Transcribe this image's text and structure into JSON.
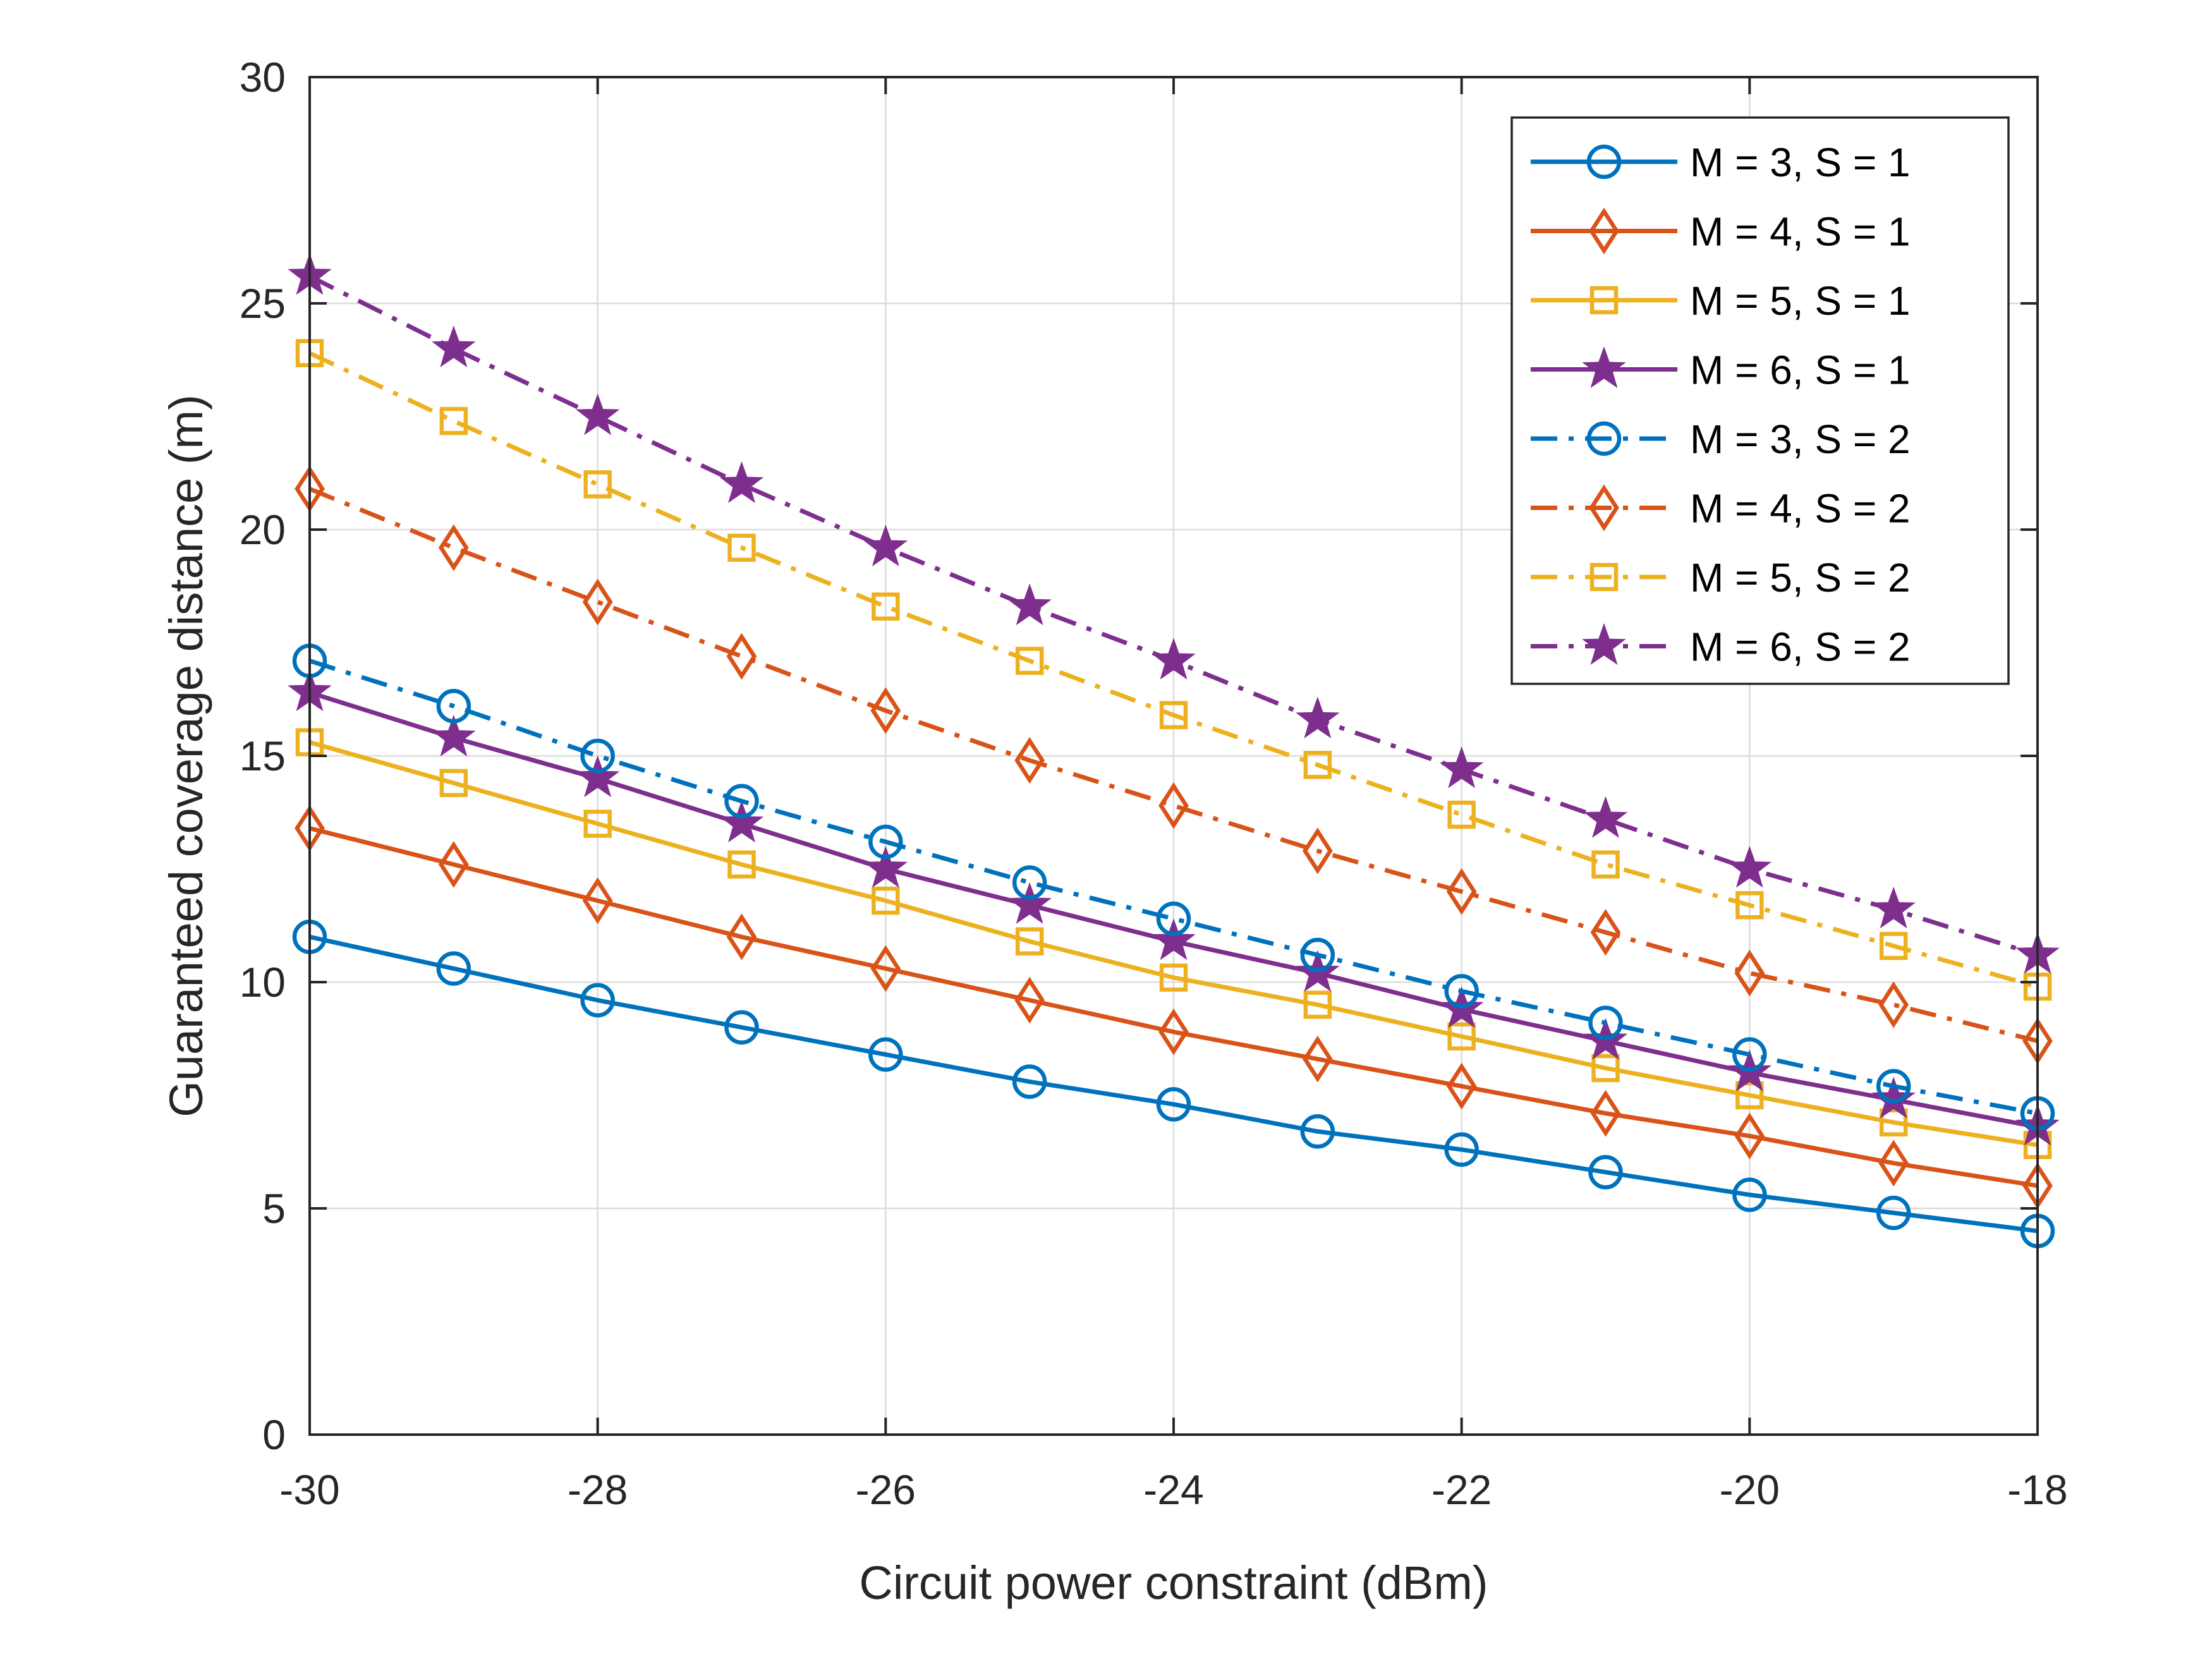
{
  "chart_data": {
    "type": "line",
    "xlabel": "Circuit power constraint (dBm)",
    "ylabel": "Guaranteed coverage distance (m)",
    "xlim": [
      -30,
      -18
    ],
    "ylim": [
      0,
      30
    ],
    "xticks": [
      -30,
      -28,
      -26,
      -24,
      -22,
      -20,
      -18
    ],
    "yticks": [
      0,
      5,
      10,
      15,
      20,
      25,
      30
    ],
    "grid": true,
    "legend_position": "top-right",
    "x": [
      -30,
      -29,
      -28,
      -27,
      -26,
      -25,
      -24,
      -23,
      -22,
      -21,
      -20,
      -19,
      -18
    ],
    "series": [
      {
        "name": "M = 3, S = 1",
        "color": "#0072BD",
        "marker": "circle",
        "linestyle": "solid",
        "values": [
          11.0,
          10.3,
          9.6,
          9.0,
          8.4,
          7.8,
          7.3,
          6.7,
          6.3,
          5.8,
          5.3,
          4.9,
          4.5
        ]
      },
      {
        "name": "M = 4, S = 1",
        "color": "#D95319",
        "marker": "diamond",
        "linestyle": "solid",
        "values": [
          13.4,
          12.6,
          11.8,
          11.0,
          10.3,
          9.6,
          8.9,
          8.3,
          7.7,
          7.1,
          6.6,
          6.0,
          5.5
        ]
      },
      {
        "name": "M = 5, S = 1",
        "color": "#EDB120",
        "marker": "square",
        "linestyle": "solid",
        "values": [
          15.3,
          14.4,
          13.5,
          12.6,
          11.8,
          10.9,
          10.1,
          9.5,
          8.8,
          8.1,
          7.5,
          6.9,
          6.4
        ]
      },
      {
        "name": "M = 6, S = 1",
        "color": "#7E2F8E",
        "marker": "star",
        "linestyle": "solid",
        "values": [
          16.4,
          15.4,
          14.5,
          13.5,
          12.5,
          11.7,
          10.9,
          10.2,
          9.4,
          8.7,
          8.0,
          7.4,
          6.8
        ]
      },
      {
        "name": "M = 3, S = 2",
        "color": "#0072BD",
        "marker": "circle",
        "linestyle": "dashdot",
        "values": [
          17.1,
          16.1,
          15.0,
          14.0,
          13.1,
          12.2,
          11.4,
          10.6,
          9.8,
          9.1,
          8.4,
          7.7,
          7.1
        ]
      },
      {
        "name": "M = 4, S = 2",
        "color": "#D95319",
        "marker": "diamond",
        "linestyle": "dashdot",
        "values": [
          20.9,
          19.6,
          18.4,
          17.2,
          16.0,
          14.9,
          13.9,
          12.9,
          12.0,
          11.1,
          10.2,
          9.5,
          8.7
        ]
      },
      {
        "name": "M = 5, S = 2",
        "color": "#EDB120",
        "marker": "square",
        "linestyle": "dashdot",
        "values": [
          23.9,
          22.4,
          21.0,
          19.6,
          18.3,
          17.1,
          15.9,
          14.8,
          13.7,
          12.6,
          11.7,
          10.8,
          9.9
        ]
      },
      {
        "name": "M = 6, S = 2",
        "color": "#7E2F8E",
        "marker": "star",
        "linestyle": "dashdot",
        "values": [
          25.6,
          24.0,
          22.5,
          21.0,
          19.6,
          18.3,
          17.1,
          15.8,
          14.7,
          13.6,
          12.5,
          11.6,
          10.6
        ]
      }
    ]
  }
}
